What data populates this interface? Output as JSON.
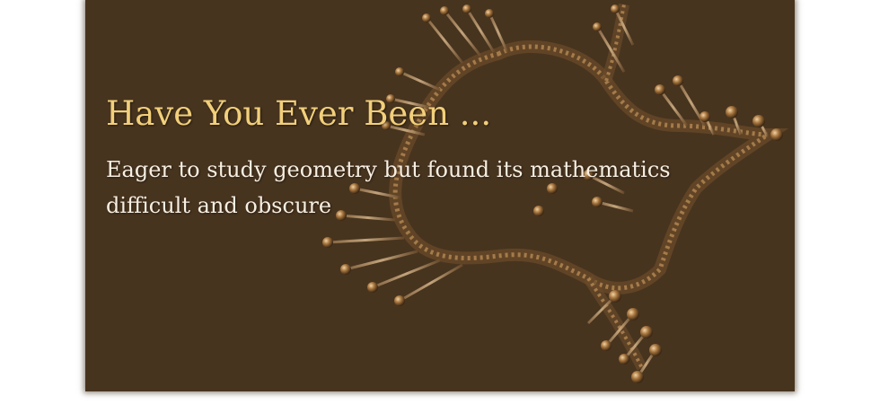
{
  "slide": {
    "headline": "Have You Ever Been ...",
    "subtext": "Eager to study geometry but found its mathematics difficult and obscure",
    "background_color": "#47341f",
    "headline_color": "#f2cf7a",
    "subtext_color": "#f7efe2",
    "illustration": "dna-helix-knot-illustration"
  }
}
